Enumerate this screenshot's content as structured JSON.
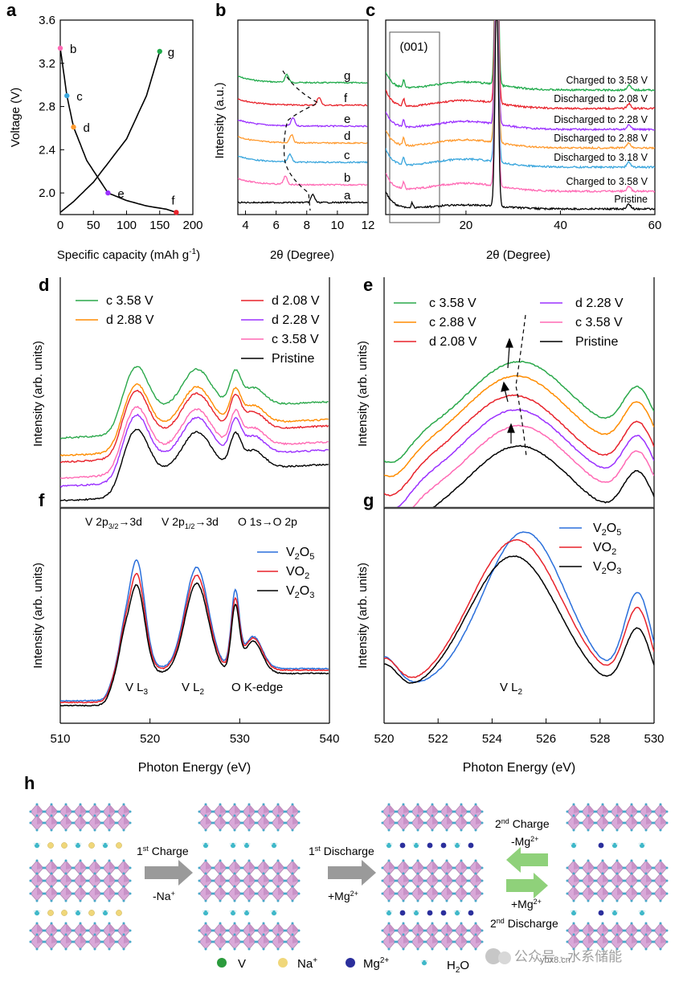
{
  "panels": {
    "a": {
      "letter": "a",
      "ylabel": "Voltage (V)",
      "xlabel": "Specific capacity (mAh g-1)",
      "xlabel_main": "Specific capacity (mAh g",
      "xlabel_sup": "-1",
      "xlabel_end": ")",
      "xticks": [
        "0",
        "50",
        "100",
        "150",
        "200"
      ],
      "yticks": [
        "2.0",
        "2.4",
        "2.8",
        "3.2",
        "3.6"
      ],
      "points": [
        {
          "label": "b",
          "x": 0,
          "y": 3.34,
          "color": "#ff69b4"
        },
        {
          "label": "c",
          "x": 10,
          "y": 2.9,
          "color": "#3aa6dd"
        },
        {
          "label": "d",
          "x": 20,
          "y": 2.61,
          "color": "#ff9a2e"
        },
        {
          "label": "e",
          "x": 72,
          "y": 2.0,
          "color": "#9b30ff"
        },
        {
          "label": "f",
          "x": 175,
          "y": 1.82,
          "color": "#e8222a"
        },
        {
          "label": "g",
          "x": 150,
          "y": 3.31,
          "color": "#1faa4a"
        }
      ]
    },
    "b": {
      "letter": "b",
      "ylabel": "Intensity (a.u.)",
      "xlabel": "2θ (Degree)",
      "xticks": [
        "4",
        "6",
        "8",
        "10",
        "12"
      ],
      "curve_labels": [
        "g",
        "f",
        "e",
        "d",
        "c",
        "b",
        "a"
      ]
    },
    "c": {
      "letter": "c",
      "xlabel": "2θ (Degree)",
      "xticks": [
        "20",
        "40",
        "60"
      ],
      "box_label": "(001)",
      "curve_labels": [
        "Charged to 3.58 V",
        "Discharged to 2.08 V",
        "Discharged to 2.28 V",
        "Discharged to 2.88 V",
        "Discharged to 3.18 V",
        "Charged to 3.58 V",
        "Pristine"
      ]
    },
    "d": {
      "letter": "d",
      "ylabel": "Intensity (arb. units)",
      "legend": [
        {
          "text": "c 3.58 V",
          "color": "#2aa84a"
        },
        {
          "text": "d 2.88 V",
          "color": "#ff8c00"
        },
        {
          "text": "d 2.08 V",
          "color": "#e8222a"
        },
        {
          "text": "d 2.28 V",
          "color": "#9b30ff"
        },
        {
          "text": "c 3.58 V",
          "color": "#ff69b4"
        },
        {
          "text": "Pristine",
          "color": "#000000"
        }
      ]
    },
    "e": {
      "letter": "e",
      "ylabel": "Intensity (arb. units)",
      "legend": [
        {
          "text": "c 3.58 V",
          "color": "#2aa84a"
        },
        {
          "text": "c 2.88 V",
          "color": "#ff8c00"
        },
        {
          "text": "d 2.08 V",
          "color": "#e8222a"
        },
        {
          "text": "d 2.28 V",
          "color": "#9b30ff"
        },
        {
          "text": "c 3.58 V",
          "color": "#ff69b4"
        },
        {
          "text": "Pristine",
          "color": "#000000"
        }
      ]
    },
    "f": {
      "letter": "f",
      "ylabel": "Intensity (arb. units)",
      "xlabel": "Photon Energy (eV)",
      "xticks": [
        "510",
        "520",
        "530",
        "540"
      ],
      "transitions": [
        "V 2p3/2→3d",
        "V 2p1/2→3d",
        "O 1s→O 2p"
      ],
      "edge_labels": [
        "V L3",
        "V L2",
        "O K-edge"
      ],
      "legend": [
        {
          "text": "V2O5",
          "color": "#2a6fdb"
        },
        {
          "text": "VO2",
          "color": "#e8222a"
        },
        {
          "text": "V2O3",
          "color": "#000000"
        }
      ]
    },
    "g": {
      "letter": "g",
      "ylabel": "Intensity (arb. units)",
      "xlabel": "Photon Energy (eV)",
      "xticks": [
        "520",
        "522",
        "524",
        "526",
        "528",
        "530"
      ],
      "edge_label": "V L2",
      "legend": [
        {
          "text": "V2O5",
          "color": "#2a6fdb"
        },
        {
          "text": "VO2",
          "color": "#e8222a"
        },
        {
          "text": "V2O3",
          "color": "#000000"
        }
      ]
    },
    "h": {
      "letter": "h",
      "step1": "1st Charge",
      "step1_ion": "-Na+",
      "step2": "1st Discharge",
      "step2_ion": "+Mg2+",
      "step3_top": "2nd Charge",
      "step3_top_ion": "-Mg2+",
      "step3_bottom_ion": "+Mg2+",
      "step3_bottom": "2nd Discharge",
      "key": [
        "V",
        "Na+",
        "Mg2+",
        "H2O"
      ]
    }
  },
  "watermark": "公众号 · 水系储能",
  "watermark_url": "ybx8.cn",
  "chart_data": [
    {
      "type": "line",
      "panel": "a",
      "xlabel": "Specific capacity (mAh g-1)",
      "ylabel": "Voltage (V)",
      "xlim": [
        0,
        200
      ],
      "ylim": [
        1.8,
        3.6
      ],
      "series": [
        {
          "name": "discharge",
          "x": [
            0,
            10,
            20,
            40,
            72,
            100,
            130,
            160,
            175
          ],
          "y": [
            3.34,
            2.9,
            2.61,
            2.3,
            2.0,
            1.93,
            1.88,
            1.85,
            1.82
          ]
        },
        {
          "name": "charge",
          "x": [
            0,
            20,
            50,
            100,
            130,
            150
          ],
          "y": [
            1.82,
            1.92,
            2.1,
            2.5,
            2.9,
            3.31
          ]
        }
      ]
    },
    {
      "type": "line",
      "panel": "b",
      "xlabel": "2θ (Degree)",
      "ylabel": "Intensity (a.u.)",
      "xlim": [
        3.5,
        12
      ],
      "peaks_2theta": {
        "a": 8.4,
        "b": 6.6,
        "c": 6.9,
        "d": 7.0,
        "e": 7.1,
        "f": 8.8,
        "g": 6.7
      }
    },
    {
      "type": "line",
      "panel": "c",
      "xlabel": "2θ (Degree)",
      "xlim": [
        3,
        60
      ],
      "main_peak_2theta": 26.5,
      "minor_peak_2theta": 54.5
    },
    {
      "type": "line",
      "panel": "f",
      "xlabel": "Photon Energy (eV)",
      "ylabel": "Intensity (arb. units)",
      "xlim": [
        510,
        540
      ],
      "peaks_eV": [
        518.5,
        525.2,
        529.5,
        531.5
      ]
    },
    {
      "type": "line",
      "panel": "g",
      "xlabel": "Photon Energy (eV)",
      "ylabel": "Intensity (arb. units)",
      "xlim": [
        520,
        530
      ],
      "peaks_eV": [
        525.0,
        529.4
      ],
      "minima_eV": [
        521,
        528
      ]
    }
  ]
}
